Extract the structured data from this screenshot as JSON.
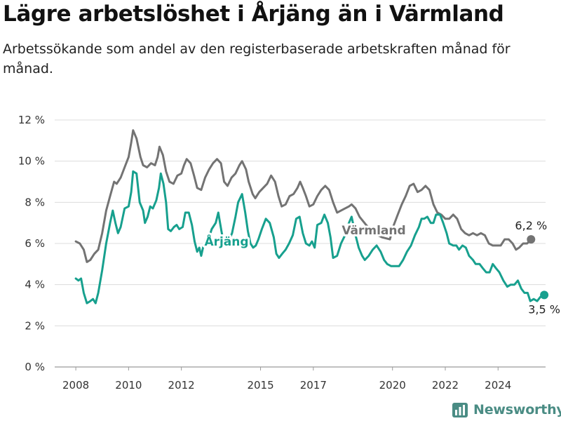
{
  "title": "Lägre arbetslöshet i Årjäng än i Värmland",
  "subtitle": "Arbetssökande som andel av den registerbaserade arbetskraften månad för månad.",
  "brand": {
    "name": "Newsworthy",
    "icon": "newsworthy-logo-icon",
    "color": "#4a8c84"
  },
  "chart_data": {
    "type": "line",
    "title": "Lägre arbetslöshet i Årjäng än i Värmland",
    "subtitle": "Arbetssökande som andel av den registerbaserade arbetskraften månad för månad.",
    "xlabel": "",
    "ylabel": "",
    "x_tick_labels": [
      "2008",
      "2010",
      "2012",
      "2015",
      "2017",
      "2020",
      "2022",
      "2024"
    ],
    "x_tick_values": [
      2008.0,
      2010.0,
      2012.0,
      2015.0,
      2017.0,
      2020.0,
      2022.0,
      2024.0
    ],
    "y_tick_labels": [
      "0 %",
      "2 %",
      "4 %",
      "6 %",
      "8 %",
      "10 %",
      "12 %"
    ],
    "ylim": [
      0,
      12
    ],
    "xlim": [
      2007.2,
      2025.8
    ],
    "grid": true,
    "legend": "direct labels on lines",
    "series": [
      {
        "name": "Värmland",
        "color": "#737373",
        "end_label": "6,2 %",
        "points": [
          [
            2008.0,
            6.1
          ],
          [
            2008.15,
            6.0
          ],
          [
            2008.3,
            5.7
          ],
          [
            2008.42,
            5.1
          ],
          [
            2008.55,
            5.2
          ],
          [
            2008.7,
            5.5
          ],
          [
            2008.85,
            5.7
          ],
          [
            2009.0,
            6.5
          ],
          [
            2009.15,
            7.6
          ],
          [
            2009.3,
            8.3
          ],
          [
            2009.45,
            9.0
          ],
          [
            2009.55,
            8.9
          ],
          [
            2009.7,
            9.2
          ],
          [
            2009.85,
            9.7
          ],
          [
            2010.0,
            10.2
          ],
          [
            2010.1,
            10.9
          ],
          [
            2010.17,
            11.5
          ],
          [
            2010.3,
            11.1
          ],
          [
            2010.45,
            10.2
          ],
          [
            2010.55,
            9.8
          ],
          [
            2010.7,
            9.7
          ],
          [
            2010.85,
            9.9
          ],
          [
            2011.0,
            9.8
          ],
          [
            2011.1,
            10.2
          ],
          [
            2011.17,
            10.7
          ],
          [
            2011.3,
            10.3
          ],
          [
            2011.42,
            9.5
          ],
          [
            2011.55,
            9.0
          ],
          [
            2011.7,
            8.9
          ],
          [
            2011.85,
            9.3
          ],
          [
            2012.0,
            9.4
          ],
          [
            2012.1,
            9.8
          ],
          [
            2012.2,
            10.1
          ],
          [
            2012.35,
            9.9
          ],
          [
            2012.48,
            9.3
          ],
          [
            2012.6,
            8.7
          ],
          [
            2012.75,
            8.6
          ],
          [
            2012.9,
            9.2
          ],
          [
            2013.05,
            9.6
          ],
          [
            2013.2,
            9.9
          ],
          [
            2013.35,
            10.1
          ],
          [
            2013.5,
            9.9
          ],
          [
            2013.62,
            9.0
          ],
          [
            2013.75,
            8.8
          ],
          [
            2013.9,
            9.2
          ],
          [
            2014.05,
            9.4
          ],
          [
            2014.2,
            9.8
          ],
          [
            2014.3,
            10.0
          ],
          [
            2014.45,
            9.6
          ],
          [
            2014.55,
            9.0
          ],
          [
            2014.7,
            8.4
          ],
          [
            2014.8,
            8.2
          ],
          [
            2014.95,
            8.5
          ],
          [
            2015.1,
            8.7
          ],
          [
            2015.25,
            8.9
          ],
          [
            2015.4,
            9.3
          ],
          [
            2015.55,
            9.0
          ],
          [
            2015.68,
            8.3
          ],
          [
            2015.8,
            7.8
          ],
          [
            2015.95,
            7.9
          ],
          [
            2016.1,
            8.3
          ],
          [
            2016.25,
            8.4
          ],
          [
            2016.4,
            8.7
          ],
          [
            2016.5,
            9.0
          ],
          [
            2016.6,
            8.7
          ],
          [
            2016.72,
            8.3
          ],
          [
            2016.85,
            7.8
          ],
          [
            2017.0,
            7.9
          ],
          [
            2017.15,
            8.3
          ],
          [
            2017.3,
            8.6
          ],
          [
            2017.45,
            8.8
          ],
          [
            2017.6,
            8.6
          ],
          [
            2017.75,
            8.0
          ],
          [
            2017.9,
            7.5
          ],
          [
            2018.05,
            7.6
          ],
          [
            2018.2,
            7.7
          ],
          [
            2018.35,
            7.8
          ],
          [
            2018.45,
            7.9
          ],
          [
            2018.6,
            7.7
          ],
          [
            2018.75,
            7.3
          ],
          [
            2019.0,
            6.9
          ],
          [
            2019.3,
            6.5
          ],
          [
            2019.6,
            6.3
          ],
          [
            2019.9,
            6.2
          ],
          [
            2020.05,
            6.9
          ],
          [
            2020.2,
            7.4
          ],
          [
            2020.35,
            7.9
          ],
          [
            2020.5,
            8.3
          ],
          [
            2020.65,
            8.8
          ],
          [
            2020.8,
            8.9
          ],
          [
            2020.95,
            8.5
          ],
          [
            2021.1,
            8.6
          ],
          [
            2021.25,
            8.8
          ],
          [
            2021.4,
            8.6
          ],
          [
            2021.55,
            7.9
          ],
          [
            2021.7,
            7.5
          ],
          [
            2021.85,
            7.4
          ],
          [
            2022.0,
            7.2
          ],
          [
            2022.15,
            7.2
          ],
          [
            2022.3,
            7.4
          ],
          [
            2022.45,
            7.2
          ],
          [
            2022.6,
            6.7
          ],
          [
            2022.75,
            6.5
          ],
          [
            2022.9,
            6.4
          ],
          [
            2023.05,
            6.5
          ],
          [
            2023.2,
            6.4
          ],
          [
            2023.35,
            6.5
          ],
          [
            2023.5,
            6.4
          ],
          [
            2023.65,
            6.0
          ],
          [
            2023.8,
            5.9
          ],
          [
            2023.95,
            5.9
          ],
          [
            2024.1,
            5.9
          ],
          [
            2024.25,
            6.2
          ],
          [
            2024.4,
            6.2
          ],
          [
            2024.55,
            6.0
          ],
          [
            2024.68,
            5.7
          ],
          [
            2024.8,
            5.8
          ],
          [
            2024.95,
            6.0
          ],
          [
            2025.1,
            6.0
          ],
          [
            2025.25,
            6.2
          ]
        ]
      },
      {
        "name": "Årjäng",
        "color": "#17a08e",
        "end_label": "3,5 %",
        "points": [
          [
            2008.0,
            4.3
          ],
          [
            2008.1,
            4.2
          ],
          [
            2008.2,
            4.3
          ],
          [
            2008.3,
            3.6
          ],
          [
            2008.42,
            3.1
          ],
          [
            2008.55,
            3.2
          ],
          [
            2008.65,
            3.3
          ],
          [
            2008.75,
            3.1
          ],
          [
            2008.85,
            3.6
          ],
          [
            2009.0,
            4.7
          ],
          [
            2009.15,
            6.0
          ],
          [
            2009.3,
            7.0
          ],
          [
            2009.4,
            7.6
          ],
          [
            2009.5,
            7.0
          ],
          [
            2009.6,
            6.5
          ],
          [
            2009.7,
            6.8
          ],
          [
            2009.85,
            7.7
          ],
          [
            2010.0,
            7.8
          ],
          [
            2010.1,
            8.5
          ],
          [
            2010.17,
            9.5
          ],
          [
            2010.3,
            9.4
          ],
          [
            2010.42,
            8.0
          ],
          [
            2010.55,
            7.6
          ],
          [
            2010.62,
            7.0
          ],
          [
            2010.72,
            7.3
          ],
          [
            2010.82,
            7.8
          ],
          [
            2010.92,
            7.7
          ],
          [
            2011.05,
            8.1
          ],
          [
            2011.15,
            8.7
          ],
          [
            2011.22,
            9.4
          ],
          [
            2011.32,
            8.9
          ],
          [
            2011.42,
            8.0
          ],
          [
            2011.5,
            6.7
          ],
          [
            2011.6,
            6.6
          ],
          [
            2011.72,
            6.8
          ],
          [
            2011.82,
            6.9
          ],
          [
            2011.92,
            6.7
          ],
          [
            2012.05,
            6.8
          ],
          [
            2012.15,
            7.5
          ],
          [
            2012.28,
            7.5
          ],
          [
            2012.4,
            6.9
          ],
          [
            2012.5,
            6.1
          ],
          [
            2012.6,
            5.6
          ],
          [
            2012.68,
            5.8
          ],
          [
            2012.75,
            5.4
          ],
          [
            2012.82,
            5.8
          ],
          [
            2012.92,
            6.2
          ],
          [
            2013.05,
            6.3
          ],
          [
            2013.15,
            6.7
          ],
          [
            2013.3,
            7.0
          ],
          [
            2013.4,
            7.5
          ],
          [
            2013.52,
            6.6
          ],
          [
            2013.62,
            5.9
          ],
          [
            2013.72,
            5.9
          ],
          [
            2013.82,
            6.2
          ],
          [
            2013.92,
            6.5
          ],
          [
            2014.05,
            7.3
          ],
          [
            2014.15,
            8.0
          ],
          [
            2014.3,
            8.4
          ],
          [
            2014.42,
            7.5
          ],
          [
            2014.52,
            6.6
          ],
          [
            2014.62,
            6.0
          ],
          [
            2014.72,
            5.8
          ],
          [
            2014.82,
            5.9
          ],
          [
            2014.92,
            6.2
          ],
          [
            2015.05,
            6.7
          ],
          [
            2015.2,
            7.2
          ],
          [
            2015.35,
            7.0
          ],
          [
            2015.5,
            6.3
          ],
          [
            2015.6,
            5.5
          ],
          [
            2015.7,
            5.3
          ],
          [
            2015.82,
            5.5
          ],
          [
            2015.95,
            5.7
          ],
          [
            2016.08,
            6.0
          ],
          [
            2016.22,
            6.4
          ],
          [
            2016.35,
            7.2
          ],
          [
            2016.48,
            7.3
          ],
          [
            2016.6,
            6.5
          ],
          [
            2016.72,
            6.0
          ],
          [
            2016.85,
            5.9
          ],
          [
            2016.95,
            6.1
          ],
          [
            2017.05,
            5.8
          ],
          [
            2017.15,
            6.9
          ],
          [
            2017.3,
            7.0
          ],
          [
            2017.42,
            7.4
          ],
          [
            2017.55,
            7.0
          ],
          [
            2017.65,
            6.3
          ],
          [
            2017.75,
            5.3
          ],
          [
            2017.9,
            5.4
          ],
          [
            2018.05,
            6.0
          ],
          [
            2018.2,
            6.4
          ],
          [
            2018.35,
            7.0
          ],
          [
            2018.45,
            7.3
          ],
          [
            2018.6,
            6.4
          ],
          [
            2018.72,
            5.8
          ],
          [
            2018.85,
            5.4
          ],
          [
            2018.95,
            5.2
          ],
          [
            2019.1,
            5.4
          ],
          [
            2019.25,
            5.7
          ],
          [
            2019.4,
            5.9
          ],
          [
            2019.55,
            5.6
          ],
          [
            2019.68,
            5.2
          ],
          [
            2019.8,
            5.0
          ],
          [
            2019.95,
            4.9
          ],
          [
            2020.1,
            4.9
          ],
          [
            2020.25,
            4.9
          ],
          [
            2020.4,
            5.2
          ],
          [
            2020.55,
            5.6
          ],
          [
            2020.7,
            5.9
          ],
          [
            2020.85,
            6.4
          ],
          [
            2021.0,
            6.8
          ],
          [
            2021.1,
            7.2
          ],
          [
            2021.2,
            7.2
          ],
          [
            2021.32,
            7.3
          ],
          [
            2021.45,
            7.0
          ],
          [
            2021.55,
            7.0
          ],
          [
            2021.65,
            7.4
          ],
          [
            2021.8,
            7.4
          ],
          [
            2021.92,
            7.0
          ],
          [
            2022.05,
            6.5
          ],
          [
            2022.15,
            6.0
          ],
          [
            2022.3,
            5.9
          ],
          [
            2022.42,
            5.9
          ],
          [
            2022.52,
            5.7
          ],
          [
            2022.65,
            5.9
          ],
          [
            2022.78,
            5.8
          ],
          [
            2022.9,
            5.4
          ],
          [
            2023.05,
            5.2
          ],
          [
            2023.15,
            5.0
          ],
          [
            2023.3,
            5.0
          ],
          [
            2023.42,
            4.8
          ],
          [
            2023.55,
            4.6
          ],
          [
            2023.68,
            4.6
          ],
          [
            2023.8,
            5.0
          ],
          [
            2023.92,
            4.8
          ],
          [
            2024.05,
            4.6
          ],
          [
            2024.2,
            4.2
          ],
          [
            2024.35,
            3.9
          ],
          [
            2024.48,
            4.0
          ],
          [
            2024.62,
            4.0
          ],
          [
            2024.75,
            4.2
          ],
          [
            2024.88,
            3.8
          ],
          [
            2025.0,
            3.6
          ],
          [
            2025.12,
            3.6
          ],
          [
            2025.22,
            3.2
          ],
          [
            2025.35,
            3.3
          ],
          [
            2025.48,
            3.2
          ],
          [
            2025.6,
            3.4
          ],
          [
            2025.75,
            3.5
          ]
        ]
      }
    ]
  }
}
